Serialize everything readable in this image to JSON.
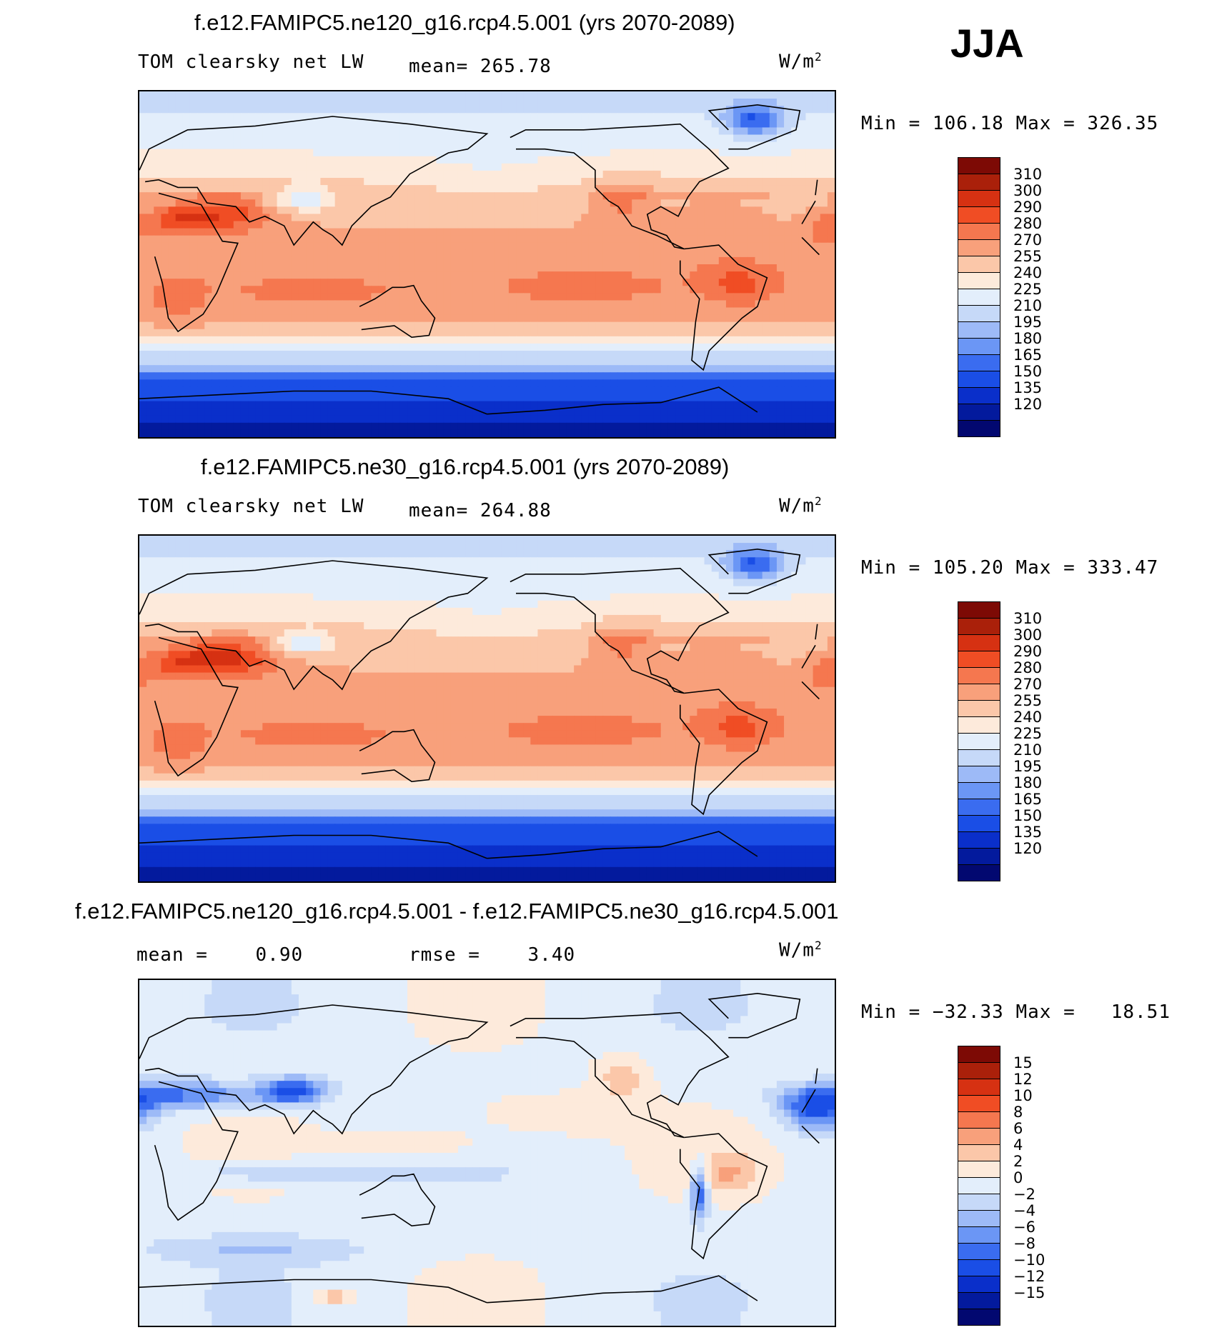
{
  "season": "JJA",
  "colors": {
    "main_scale": [
      "#020870",
      "#031a9d",
      "#0a2fca",
      "#1a4ee6",
      "#3a6cf0",
      "#6b96f5",
      "#9dbaf7",
      "#c6d9f8",
      "#e3eefb",
      "#fdeadb",
      "#fbc7a9",
      "#f8a07b",
      "#f5774f",
      "#f04d24",
      "#d63112",
      "#aa200a",
      "#7d0a05"
    ],
    "diff_scale": [
      "#020870",
      "#031a9d",
      "#0a2fca",
      "#1a4ee6",
      "#3a6cf0",
      "#6b96f5",
      "#9dbaf7",
      "#c6d9f8",
      "#e3eefb",
      "#fdeadb",
      "#fbc7a9",
      "#f8a07b",
      "#f5774f",
      "#f04d24",
      "#d63112",
      "#aa200a",
      "#7d0a05"
    ]
  },
  "chart_data": [
    {
      "type": "heatmap",
      "title": "f.e12.FAMIPC5.ne120_g16.rcp4.5.001 (yrs 2070-2089)",
      "variable": "TOM clearsky net LW",
      "mean_label": "mean= 265.78",
      "mean": 265.78,
      "units_base": "W/m",
      "units_exp": "2",
      "minmax_label": "Min = 106.18 Max = 326.35",
      "min": 106.18,
      "max": 326.35,
      "colorbar_levels": [
        "310",
        "300",
        "290",
        "280",
        "270",
        "255",
        "240",
        "225",
        "210",
        "195",
        "180",
        "165",
        "150",
        "135",
        "120"
      ],
      "xlim": [
        0,
        360
      ],
      "ylim": [
        -90,
        90
      ],
      "projection": "cylindrical equidistant, centered 180"
    },
    {
      "type": "heatmap",
      "title": "f.e12.FAMIPC5.ne30_g16.rcp4.5.001 (yrs 2070-2089)",
      "variable": "TOM clearsky net LW",
      "mean_label": "mean= 264.88",
      "mean": 264.88,
      "units_base": "W/m",
      "units_exp": "2",
      "minmax_label": "Min = 105.20 Max = 333.47",
      "min": 105.2,
      "max": 333.47,
      "colorbar_levels": [
        "310",
        "300",
        "290",
        "280",
        "270",
        "255",
        "240",
        "225",
        "210",
        "195",
        "180",
        "165",
        "150",
        "135",
        "120"
      ],
      "xlim": [
        0,
        360
      ],
      "ylim": [
        -90,
        90
      ],
      "projection": "cylindrical equidistant, centered 180"
    },
    {
      "type": "heatmap",
      "title": "f.e12.FAMIPC5.ne120_g16.rcp4.5.001 - f.e12.FAMIPC5.ne30_g16.rcp4.5.001",
      "mean_label": "mean =    0.90",
      "mean": 0.9,
      "rmse_label": "rmse =    3.40",
      "rmse": 3.4,
      "units_base": "W/m",
      "units_exp": "2",
      "minmax_label": "Min = −32.33 Max =   18.51",
      "min": -32.33,
      "max": 18.51,
      "colorbar_levels": [
        "15",
        "12",
        "10",
        "8",
        "6",
        "4",
        "2",
        "0",
        "−2",
        "−4",
        "−6",
        "−8",
        "−10",
        "−12",
        "−15"
      ],
      "xlim": [
        0,
        360
      ],
      "ylim": [
        -90,
        90
      ],
      "projection": "cylindrical equidistant, centered 180"
    }
  ]
}
